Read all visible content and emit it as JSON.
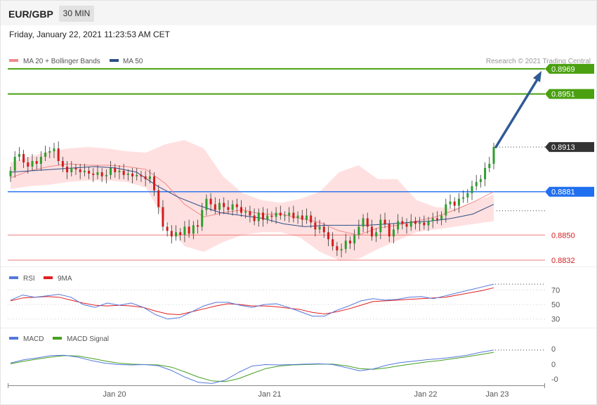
{
  "header": {
    "symbol": "EUR/GBP",
    "timeframe": "30 MIN",
    "datetime": "Friday, January 22, 2021 11:23:53 AM CET"
  },
  "legend": {
    "ma20_label": "MA 20 + Bollinger Bands",
    "ma50_label": "MA 50",
    "copyright": "Research © 2021 Trading Central",
    "rsi_label": "RSI",
    "rsi_ma_label": "9MA",
    "macd_label": "MACD",
    "macd_signal_label": "MACD Signal"
  },
  "colors": {
    "bull": "#2e9e2e",
    "bear": "#d31c1c",
    "bollinger_fill": "#ffdada",
    "ma20": "#f08a8a",
    "ma50": "#2d4f8a",
    "target": "#4aa010",
    "pivot": "#1f6fef",
    "support": "#e85a5a",
    "current": "#333333",
    "arrow": "#2f5a96",
    "rsi": "#5577dd",
    "rsi_ma": "#e02020",
    "macd": "#5577dd",
    "macd_signal": "#44a020"
  },
  "chart_data": [
    {
      "type": "candlestick",
      "title": "EUR/GBP",
      "timeframe": "30 MIN",
      "x_tick_labels": [
        "Jan 20",
        "Jan 21",
        "Jan 22",
        "Jan 23"
      ],
      "ylim": [
        0.8828,
        0.8978
      ],
      "close_series": [
        0.8896,
        0.8906,
        0.8908,
        0.8902,
        0.8899,
        0.8903,
        0.8901,
        0.8906,
        0.8909,
        0.891,
        0.8912,
        0.8903,
        0.8899,
        0.8895,
        0.8898,
        0.8897,
        0.8895,
        0.8896,
        0.8894,
        0.8893,
        0.8895,
        0.8892,
        0.8893,
        0.8898,
        0.8895,
        0.8896,
        0.8893,
        0.8894,
        0.8892,
        0.8893,
        0.8892,
        0.889,
        0.8892,
        0.8882,
        0.887,
        0.8856,
        0.8853,
        0.8849,
        0.8852,
        0.885,
        0.8856,
        0.8851,
        0.8857,
        0.8856,
        0.8868,
        0.8876,
        0.8872,
        0.8868,
        0.8873,
        0.887,
        0.8868,
        0.8872,
        0.887,
        0.8866,
        0.8867,
        0.8864,
        0.886,
        0.8866,
        0.8861,
        0.8864,
        0.8863,
        0.8866,
        0.8864,
        0.8864,
        0.8866,
        0.8862,
        0.8864,
        0.8861,
        0.8864,
        0.8859,
        0.8854,
        0.8856,
        0.8852,
        0.8847,
        0.8842,
        0.8839,
        0.884,
        0.8846,
        0.8844,
        0.885,
        0.8856,
        0.8862,
        0.8856,
        0.8849,
        0.8852,
        0.8861,
        0.8858,
        0.8849,
        0.8854,
        0.886,
        0.8858,
        0.8856,
        0.886,
        0.8858,
        0.8859,
        0.8857,
        0.886,
        0.8862,
        0.8861,
        0.8864,
        0.8872,
        0.8874,
        0.8871,
        0.8876,
        0.8877,
        0.888,
        0.8885,
        0.8888,
        0.889,
        0.8898,
        0.8901,
        0.8913
      ],
      "bollinger_upper_series": [
        0.8902,
        0.8906,
        0.891,
        0.8912,
        0.8913,
        0.8912,
        0.891,
        0.8909,
        0.8915,
        0.8918,
        0.8912,
        0.8892,
        0.888,
        0.8875,
        0.8873,
        0.8876,
        0.8881,
        0.8895,
        0.89,
        0.889,
        0.889,
        0.8875,
        0.887,
        0.8869,
        0.8874,
        0.8879
      ],
      "bollinger_lower_series": [
        0.8883,
        0.8885,
        0.8886,
        0.8888,
        0.8889,
        0.8889,
        0.8888,
        0.8884,
        0.886,
        0.8842,
        0.8838,
        0.8845,
        0.885,
        0.8852,
        0.8852,
        0.8848,
        0.8838,
        0.8832,
        0.8833,
        0.884,
        0.8846,
        0.8852,
        0.8854,
        0.8856,
        0.8858,
        0.886
      ],
      "ma20_series": [
        0.8891,
        0.8896,
        0.8899,
        0.8901,
        0.89,
        0.89,
        0.8899,
        0.8897,
        0.8887,
        0.8872,
        0.8863,
        0.8866,
        0.8868,
        0.8865,
        0.8865,
        0.8862,
        0.8859,
        0.8853,
        0.885,
        0.8855,
        0.8857,
        0.886,
        0.8863,
        0.8868,
        0.8874,
        0.8881
      ],
      "ma50_series": [
        0.8895,
        0.8896,
        0.8897,
        0.8898,
        0.8899,
        0.8898,
        0.8895,
        0.8885,
        0.8877,
        0.8871,
        0.8866,
        0.8864,
        0.8862,
        0.8858,
        0.8856,
        0.8857,
        0.8857,
        0.8857,
        0.8858,
        0.8859,
        0.886,
        0.8862,
        0.8865,
        0.8872
      ],
      "levels": [
        {
          "value": 0.8969,
          "label": "0.8969",
          "kind": "target"
        },
        {
          "value": 0.8951,
          "label": "0.8951",
          "kind": "target"
        },
        {
          "value": 0.8913,
          "label": "0.8913",
          "kind": "current"
        },
        {
          "value": 0.8881,
          "label": "0.8881",
          "kind": "pivot"
        },
        {
          "value": 0.885,
          "label": "0.8850",
          "kind": "support"
        },
        {
          "value": 0.8832,
          "label": "0.8832",
          "kind": "support"
        }
      ],
      "arrow_target": 0.8969
    },
    {
      "type": "line",
      "series": [
        {
          "name": "RSI",
          "values": [
            56,
            63,
            60,
            62,
            64,
            60,
            50,
            46,
            52,
            49,
            52,
            46,
            36,
            30,
            32,
            40,
            48,
            53,
            53,
            49,
            46,
            50,
            51,
            46,
            40,
            34,
            34,
            42,
            48,
            55,
            58,
            56,
            57,
            60,
            61,
            58,
            62,
            66,
            70,
            74,
            78
          ]
        },
        {
          "name": "9MA",
          "values": [
            55,
            59,
            60,
            61,
            60,
            56,
            52,
            49,
            48,
            49,
            48,
            46,
            41,
            37,
            36,
            40,
            44,
            48,
            51,
            50,
            48,
            48,
            47,
            45,
            43,
            39,
            37,
            40,
            44,
            49,
            54,
            55,
            56,
            57,
            58,
            59,
            60,
            63,
            66,
            69,
            73
          ]
        }
      ],
      "y_tick_labels": [
        "70",
        "50",
        "30"
      ],
      "yticks": [
        70,
        50,
        30
      ],
      "ylim": [
        22,
        82
      ]
    },
    {
      "type": "line",
      "series": [
        {
          "name": "MACD",
          "values": [
            0.5,
            1.4,
            1.9,
            2.5,
            2.6,
            2.1,
            1.2,
            0.5,
            0.1,
            0.0,
            0.1,
            -0.2,
            -1.5,
            -3.3,
            -4.7,
            -5.0,
            -4.1,
            -2.0,
            -0.3,
            0.1,
            0.0,
            0.1,
            0.2,
            0.3,
            0.1,
            -0.7,
            -1.6,
            -1.1,
            -0.1,
            0.6,
            1.0,
            1.4,
            1.7,
            2.1,
            2.6,
            3.4,
            4.0
          ]
        },
        {
          "name": "MACD Signal",
          "values": [
            0.3,
            1.0,
            1.6,
            2.1,
            2.5,
            2.4,
            1.8,
            1.1,
            0.5,
            0.2,
            0.1,
            0.0,
            -0.6,
            -1.9,
            -3.3,
            -4.3,
            -4.5,
            -3.7,
            -2.3,
            -1.0,
            -0.3,
            0.0,
            0.1,
            0.2,
            0.2,
            -0.2,
            -1.0,
            -1.2,
            -0.8,
            -0.2,
            0.3,
            0.8,
            1.2,
            1.7,
            2.2,
            2.8,
            3.4
          ]
        }
      ],
      "y_tick_labels": [
        "0",
        "0",
        "-0"
      ],
      "ylim": [
        -5.5,
        5.5
      ]
    }
  ]
}
